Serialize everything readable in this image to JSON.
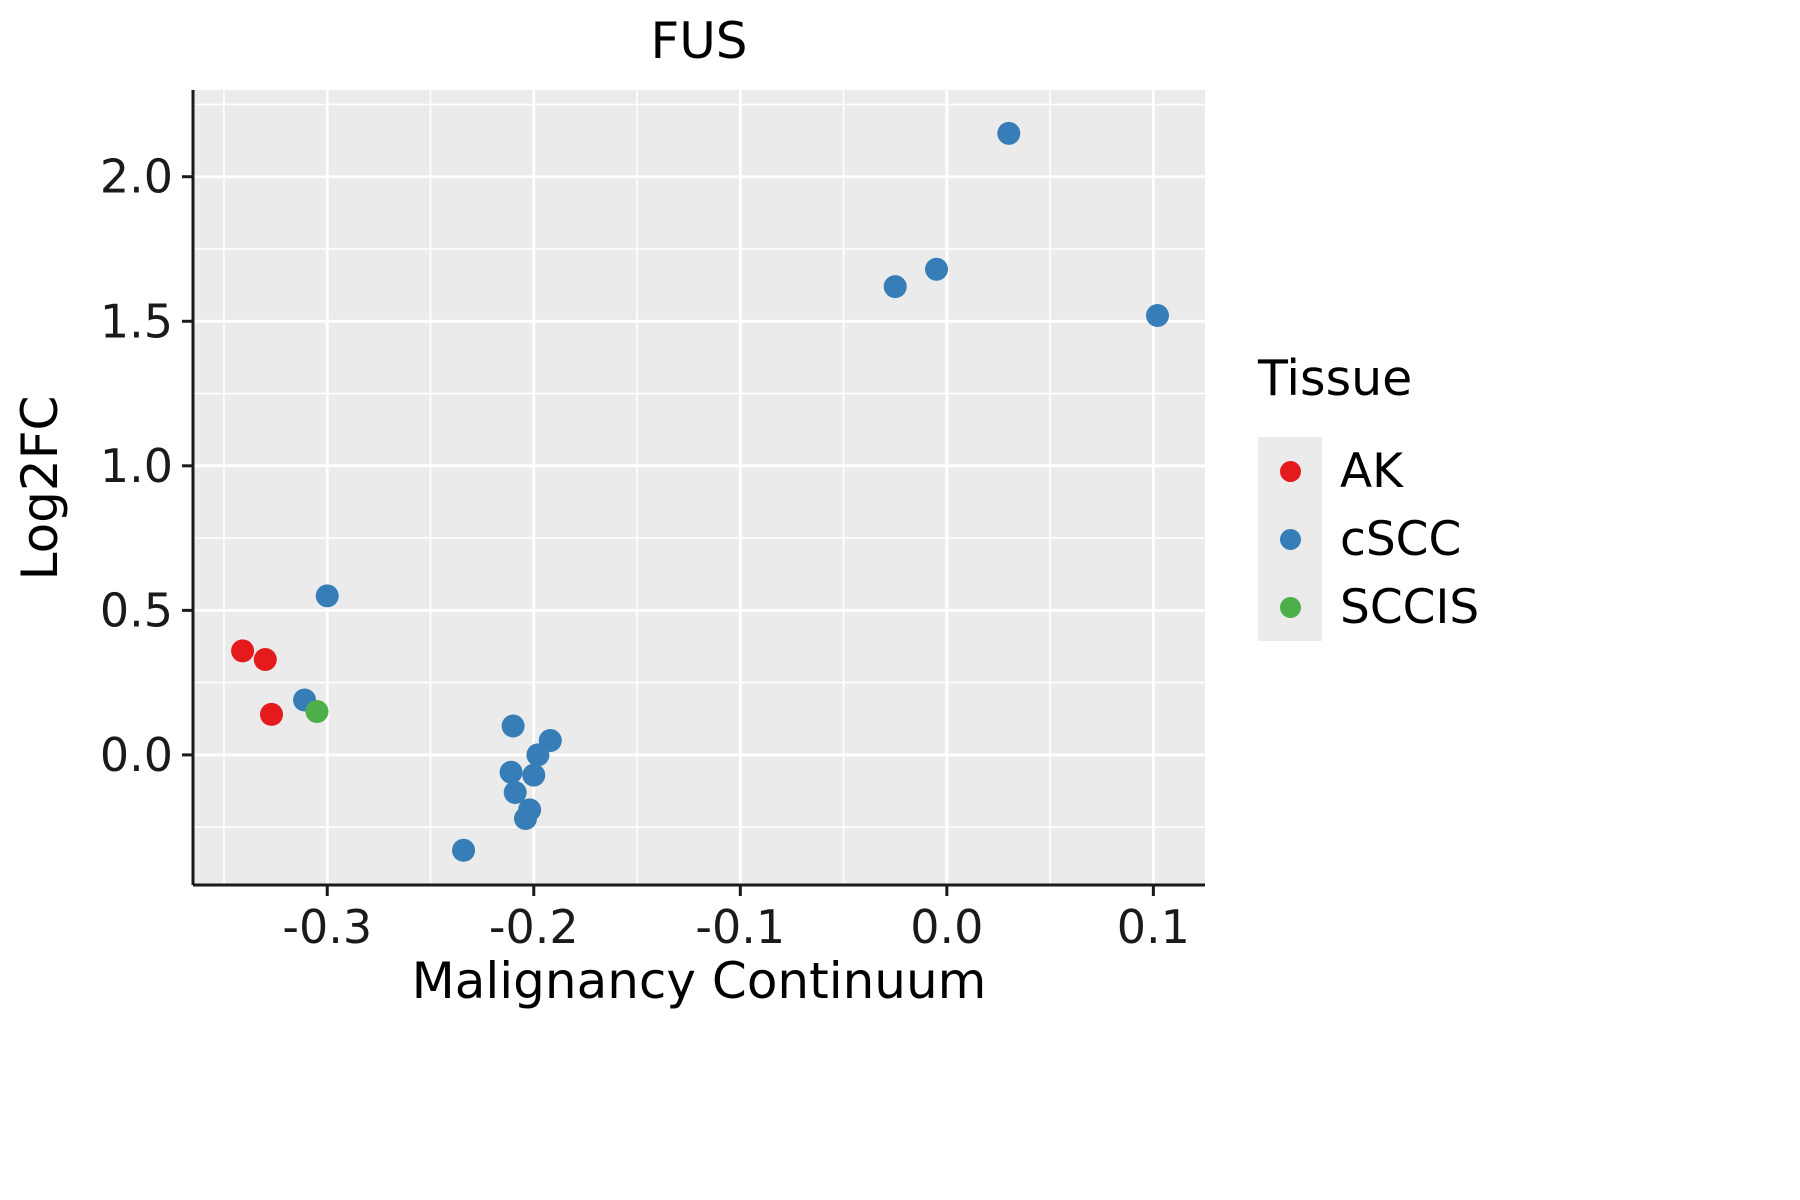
{
  "title": "FUS",
  "chart_data": {
    "type": "scatter",
    "title": "FUS",
    "xlabel": "Malignancy Continuum",
    "ylabel": "Log2FC",
    "xlim": [
      -0.365,
      0.125
    ],
    "ylim": [
      -0.45,
      2.3
    ],
    "x_ticks": [
      -0.3,
      -0.2,
      -0.1,
      0.0,
      0.1
    ],
    "x_tick_labels": [
      "-0.3",
      "-0.2",
      "-0.1",
      "0.0",
      "0.1"
    ],
    "y_ticks": [
      0.0,
      0.5,
      1.0,
      1.5,
      2.0
    ],
    "y_tick_labels": [
      "0.0",
      "0.5",
      "1.0",
      "1.5",
      "2.0"
    ],
    "x_minor": [
      -0.35,
      -0.25,
      -0.15,
      -0.05,
      0.05
    ],
    "y_minor": [
      -0.25,
      0.25,
      0.75,
      1.25,
      1.75,
      2.25
    ],
    "grid": true,
    "panel_color": "#EBEBEB",
    "grid_color": "#FFFFFF",
    "axis_color": "#1a1a1a",
    "legend_title": "Tissue",
    "legend_position": "right",
    "series": [
      {
        "name": "AK",
        "color": "#E41A1C",
        "points": [
          [
            -0.341,
            0.36
          ],
          [
            -0.33,
            0.33
          ],
          [
            -0.327,
            0.14
          ]
        ]
      },
      {
        "name": "cSCC",
        "color": "#377EB8",
        "points": [
          [
            -0.311,
            0.19
          ],
          [
            -0.3,
            0.55
          ],
          [
            -0.234,
            -0.33
          ],
          [
            -0.21,
            0.1
          ],
          [
            -0.192,
            0.05
          ],
          [
            -0.198,
            0.0
          ],
          [
            -0.211,
            -0.06
          ],
          [
            -0.2,
            -0.07
          ],
          [
            -0.209,
            -0.13
          ],
          [
            -0.202,
            -0.19
          ],
          [
            -0.204,
            -0.22
          ],
          [
            -0.025,
            1.62
          ],
          [
            -0.005,
            1.68
          ],
          [
            0.03,
            2.15
          ],
          [
            0.102,
            1.52
          ]
        ]
      },
      {
        "name": "SCCIS",
        "color": "#4DAF4A",
        "points": [
          [
            -0.305,
            0.15
          ]
        ]
      }
    ]
  }
}
